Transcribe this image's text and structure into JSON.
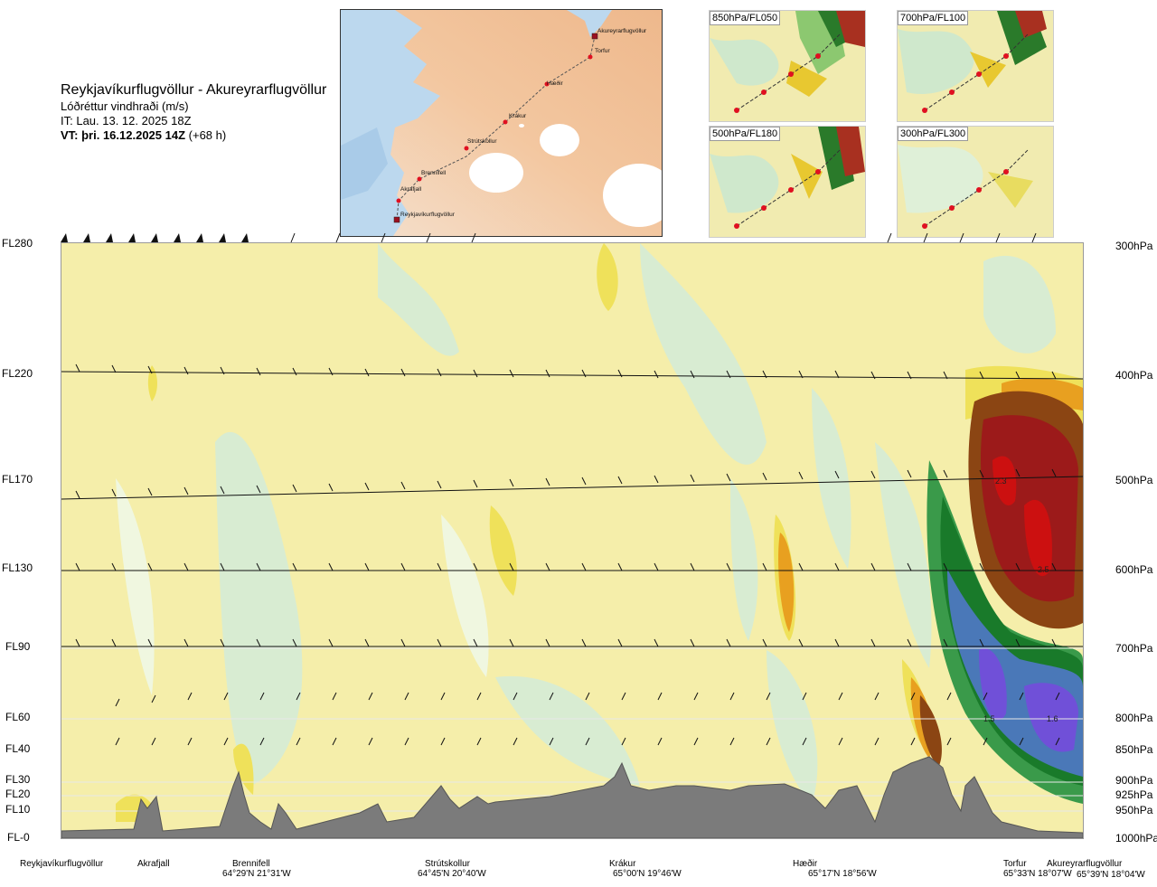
{
  "title": {
    "route": "Reykjavíkurflugvöllur - Akureyrarflugvöllur",
    "variable": "Lóðréttur vindhraði (m/s)",
    "issue": "IT: Lau. 13. 12. 2025 18Z",
    "valid": "VT: þri. 16.12.2025 14Z",
    "lead": "(+68 h)"
  },
  "map": {
    "points": [
      "Akureyrarflugvöllur",
      "Torfur",
      "Hæðir",
      "Krákur",
      "Strútskollur",
      "Brennifell",
      "Akrafjall",
      "Reykjavíkurflugvöllur"
    ]
  },
  "thumbnails": [
    {
      "label": "850hPa/FL050"
    },
    {
      "label": "700hPa/FL100"
    },
    {
      "label": "500hPa/FL180"
    },
    {
      "label": "300hPa/FL300"
    }
  ],
  "chart_data": {
    "type": "heatmap",
    "x_points": [
      {
        "name": "Reykjavíkurflugvöllur",
        "coord": ""
      },
      {
        "name": "Akrafjall",
        "coord": ""
      },
      {
        "name": "Brennifell",
        "coord": "64°29'N 21°31'W"
      },
      {
        "name": "Strútskollur",
        "coord": "64°45'N 20°40'W"
      },
      {
        "name": "Krákur",
        "coord": "65°00'N 19°46'W"
      },
      {
        "name": "Hæðir",
        "coord": "65°17'N 18°56'W"
      },
      {
        "name": "Torfur",
        "coord": "65°33'N 18°07'W"
      },
      {
        "name": "Akureyrarflugvöllur",
        "coord": "65°39'N 18°04'W"
      }
    ],
    "y_levels": [
      {
        "fl": "FL280",
        "hpa": "300hPa"
      },
      {
        "fl": "FL220",
        "hpa": "400hPa"
      },
      {
        "fl": "FL170",
        "hpa": "500hPa"
      },
      {
        "fl": "FL130",
        "hpa": "600hPa"
      },
      {
        "fl": "FL90",
        "hpa": "700hPa"
      },
      {
        "fl": "FL60",
        "hpa": "800hPa"
      },
      {
        "fl": "FL40",
        "hpa": "850hPa"
      },
      {
        "fl": "FL30",
        "hpa": "900hPa"
      },
      {
        "fl": "FL20",
        "hpa": "925hPa"
      },
      {
        "fl": "FL10",
        "hpa": "950hPa"
      },
      {
        "fl": "FL-0",
        "hpa": "1000hPa"
      }
    ],
    "annotations": [
      {
        "text": "2.3",
        "x": "Torfur",
        "level": "500hPa"
      },
      {
        "text": "2.5",
        "x": "Akureyrarflugvöllur",
        "level": "600hPa"
      },
      {
        "text": "1.5",
        "x": "Torfur",
        "level": "800hPa"
      },
      {
        "text": "1.6",
        "x": "Akureyrarflugvöllur",
        "level": "800hPa"
      }
    ],
    "colors": {
      "neutral": "#f5eeaa",
      "weak_down": "#d6ecd4",
      "mod_down": "#3a9a4a",
      "strong_down": "#4a78b8",
      "very_strong_down": "#7050d8",
      "weak_up": "#f1e040",
      "mod_up": "#e8a020",
      "strong_up": "#8b4513",
      "very_strong_up": "#a01818",
      "terrain": "#777777"
    }
  }
}
